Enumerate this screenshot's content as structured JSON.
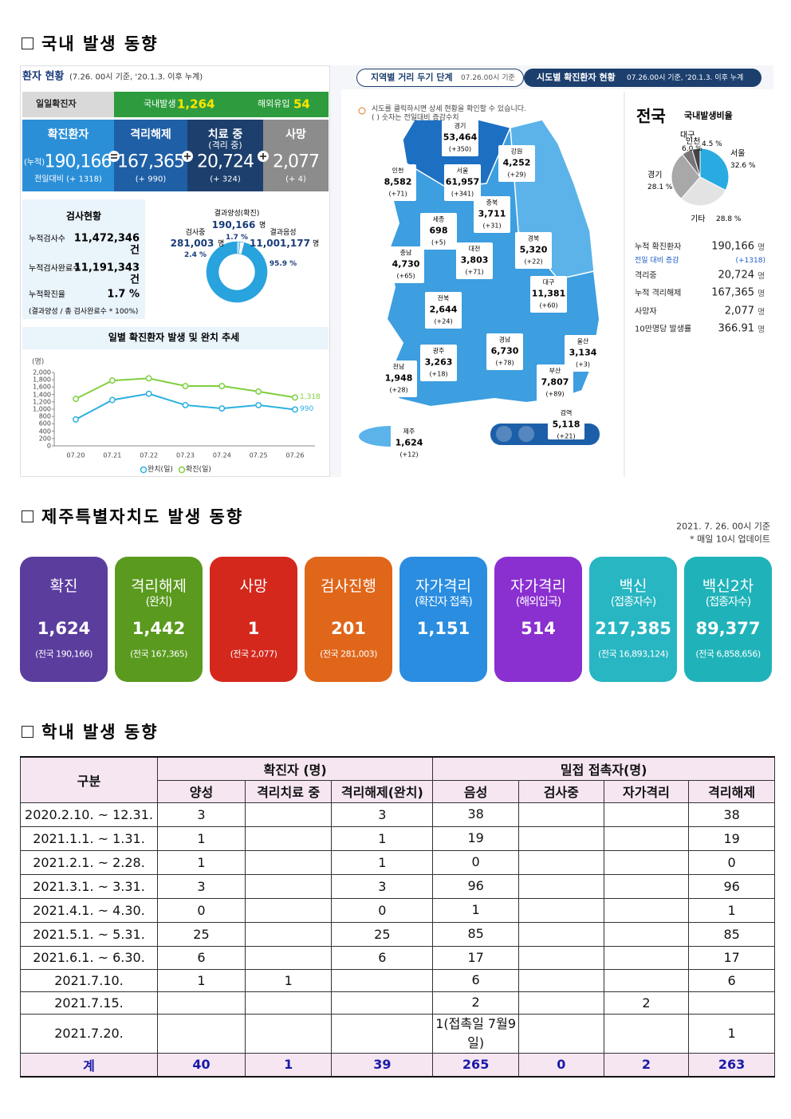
{
  "headings": [
    "국내 발생 동향",
    "제주특별자치도 발생 동향",
    "학내 발생 동향"
  ],
  "status": {
    "title": "환자 현황",
    "basis": "(7.26. 00시 기준, '20.1.3. 이후 누계)",
    "daily": {
      "label": "일일확진자",
      "domestic_label": "국내발생",
      "domestic": "1,264",
      "overseas_label": "해외유입",
      "overseas": "54"
    },
    "boxes": [
      {
        "label": "확진환자",
        "prefix": "(누적)",
        "value": "190,166",
        "change": "전일대비 (+ 1318)",
        "color": "#2b8fd8"
      },
      {
        "label": "격리해제",
        "value": "167,365",
        "change": "(+ 990)",
        "color": "#1f5fa6"
      },
      {
        "label": "치료 중",
        "sub": "(격리 중)",
        "value": "20,724",
        "change": "(+ 324)",
        "color": "#1c3f6e"
      },
      {
        "label": "사망",
        "value": "2,077",
        "change": "(+ 4)",
        "color": "#8c8c8c"
      }
    ]
  },
  "tests": {
    "title": "검사현황",
    "rows": [
      {
        "label": "누적검사수",
        "value": "11,472,346",
        "unit": "건"
      },
      {
        "label": "누적검사완료수",
        "value": "11,191,343",
        "unit": "건"
      },
      {
        "label": "누적확진율",
        "value": "1.7 %"
      }
    ],
    "note": "(결과양성 / 총 검사완료수 * 100%)"
  },
  "donut": {
    "type": "pie",
    "segments": [
      {
        "name": "결과양성(확진)",
        "count": "190,166",
        "unit": "명",
        "value": 1.7,
        "value_label": "1.7 %",
        "color": "#bfe3f5"
      },
      {
        "name": "검사중",
        "count": "281,003",
        "unit": "명",
        "value": 2.4,
        "value_label": "2.4 %",
        "color": "#ffffff"
      },
      {
        "name": "결과음성",
        "count": "11,001,177",
        "unit": "명",
        "value": 95.9,
        "value_label": "95.9 %",
        "color": "#29a3dd"
      }
    ]
  },
  "trend": {
    "type": "line",
    "title": "일별 확진환자 발생 및 완치 추세",
    "y_unit": "(명)",
    "x": [
      "07.20",
      "07.21",
      "07.22",
      "07.23",
      "07.24",
      "07.25",
      "07.26"
    ],
    "ylim": [
      0,
      2000
    ],
    "yticks": [
      0,
      200,
      400,
      600,
      800,
      {
        "value": 1000,
        "label": "1,000"
      },
      {
        "value": 1200,
        "label": "1,200"
      },
      {
        "value": 1400,
        "label": "1,400"
      },
      {
        "value": 1600,
        "label": "1,600"
      },
      {
        "value": 1800,
        "label": "1,800"
      },
      {
        "value": 2000,
        "label": "2,000"
      }
    ],
    "series": [
      {
        "name": "완치(일)",
        "color": "#2bb0e0",
        "values": [
          720,
          1250,
          1420,
          1110,
          1020,
          1110,
          990
        ],
        "value_labels": [
          null,
          null,
          null,
          null,
          null,
          null,
          "990"
        ]
      },
      {
        "name": "확진(일)",
        "color": "#7fcf3f",
        "values": [
          1280,
          1780,
          1840,
          1630,
          1630,
          1480,
          1318
        ],
        "value_labels": [
          null,
          null,
          null,
          null,
          null,
          null,
          "1,318"
        ]
      }
    ]
  },
  "map": {
    "tabs": [
      {
        "title": "지역별 거리 두기 단계",
        "basis": "07.26.00시 기준"
      },
      {
        "title": "시도별 확진환자 현황",
        "basis": "07.26.00시 기준, '20.1.3. 이후 누계"
      }
    ],
    "note": [
      "시도를 클릭하시면 상세 현황을 확인할 수 있습니다.",
      "( ) 숫자는 전일대비 증감수치"
    ],
    "regions": [
      {
        "name": "경기",
        "count": "53,464",
        "change": "(+350)"
      },
      {
        "name": "강원",
        "count": "4,252",
        "change": "(+29)"
      },
      {
        "name": "인천",
        "count": "8,582",
        "change": "(+71)"
      },
      {
        "name": "서울",
        "count": "61,957",
        "change": "(+341)"
      },
      {
        "name": "충북",
        "count": "3,711",
        "change": "(+31)"
      },
      {
        "name": "세종",
        "count": "698",
        "change": "(+5)"
      },
      {
        "name": "충남",
        "count": "4,730",
        "change": "(+65)"
      },
      {
        "name": "대전",
        "count": "3,803",
        "change": "(+71)"
      },
      {
        "name": "경북",
        "count": "5,320",
        "change": "(+22)"
      },
      {
        "name": "대구",
        "count": "11,381",
        "change": "(+60)"
      },
      {
        "name": "전북",
        "count": "2,644",
        "change": "(+24)"
      },
      {
        "name": "경남",
        "count": "6,730",
        "change": "(+78)"
      },
      {
        "name": "울산",
        "count": "3,134",
        "change": "(+3)"
      },
      {
        "name": "광주",
        "count": "3,263",
        "change": "(+18)"
      },
      {
        "name": "전남",
        "count": "1,948",
        "change": "(+28)"
      },
      {
        "name": "부산",
        "count": "7,807",
        "change": "(+89)"
      },
      {
        "name": "검역",
        "count": "5,118",
        "change": "(+21)"
      },
      {
        "name": "제주",
        "count": "1,624",
        "change": "(+12)"
      }
    ]
  },
  "national": {
    "title": "전국",
    "ratio_title": "국내발생비율",
    "pie": {
      "type": "pie",
      "categories": [
        "서울",
        "기타",
        "경기",
        "인천",
        "대구"
      ],
      "values": [
        32.6,
        28.8,
        28.1,
        6.0,
        4.5
      ],
      "value_labels": [
        "32.6 %",
        "28.8 %",
        "28.1 %",
        "6.0 %",
        "4.5 %"
      ],
      "colors": [
        "#29abe2",
        "#e3e3e3",
        "#a8a8a8",
        "#777777",
        "#444444"
      ]
    },
    "stats": [
      {
        "label": "누적 확진환자",
        "value": "190,166",
        "unit": "명"
      },
      {
        "label": "전일 대비 증감",
        "value": "(+1318)"
      },
      {
        "label": "격리중",
        "value": "20,724",
        "unit": "명"
      },
      {
        "label": "누적 격리해제",
        "value": "167,365",
        "unit": "명"
      },
      {
        "label": "사망자",
        "value": "2,077",
        "unit": "명"
      },
      {
        "label": "10만명당 발생률",
        "value": "366.91",
        "unit": "명"
      }
    ]
  },
  "jeju": {
    "basis": "2021. 7. 26. 00시 기준",
    "update": "* 매일 10시 업데이트",
    "cards": [
      {
        "label": "확진",
        "value": "1,624",
        "national": "(전국 190,166)",
        "color": "#5b3d9e"
      },
      {
        "label": "격리해제",
        "sub": "(완치)",
        "value": "1,442",
        "national": "(전국 167,365)",
        "color": "#5a9a1e"
      },
      {
        "label": "사망",
        "value": "1",
        "national": "(전국 2,077)",
        "color": "#d4281d"
      },
      {
        "label": "검사진행",
        "value": "201",
        "national": "(전국 281,003)",
        "color": "#e0661a"
      },
      {
        "label": "자가격리",
        "sub": "(확진자 접촉)",
        "value": "1,151",
        "color": "#2a8de0"
      },
      {
        "label": "자가격리",
        "sub": "(해외입국)",
        "value": "514",
        "color": "#8a2fd0"
      },
      {
        "label": "백신",
        "sub": "(접종자수)",
        "value": "217,385",
        "national": "(전국 16,893,124)",
        "color": "#27b6c2"
      },
      {
        "label": "백신2차",
        "sub": "(접종자수)",
        "value": "89,377",
        "national": "(전국 6,858,656)",
        "color": "#1fb3b9"
      }
    ]
  },
  "school": {
    "group": "구분",
    "confirmed": "확진자 (명)",
    "contacts": "밀접 접촉자(명)",
    "columns": [
      "양성",
      "격리치료 중",
      "격리해제(완치)",
      "음성",
      "검사중",
      "자가격리",
      "격리해제"
    ],
    "rows": [
      [
        "2020.2.10.  ~ 12.31.",
        "3",
        null,
        "3",
        "38",
        null,
        null,
        "38"
      ],
      [
        "2021.1.1.  ~  1.31.",
        "1",
        null,
        "1",
        "19",
        null,
        null,
        "19"
      ],
      [
        "2021.2.1.  ~  2.28.",
        "1",
        null,
        "1",
        "0",
        null,
        null,
        "0"
      ],
      [
        "2021.3.1.  ~  3.31.",
        "3",
        null,
        "3",
        "96",
        null,
        null,
        "96"
      ],
      [
        "2021.4.1.  ~  4.30.",
        "0",
        null,
        "0",
        "1",
        null,
        null,
        "1"
      ],
      [
        "2021.5.1.  ~  5.31.",
        "25",
        null,
        "25",
        "85",
        null,
        null,
        "85"
      ],
      [
        "2021.6.1.  ~  6.30.",
        "6",
        null,
        "6",
        "17",
        null,
        null,
        "17"
      ],
      [
        "2021.7.10.",
        "1",
        "1",
        null,
        "6",
        null,
        null,
        "6"
      ],
      [
        "2021.7.15.",
        null,
        null,
        null,
        "2",
        null,
        "2",
        null
      ],
      [
        "2021.7.20.",
        null,
        null,
        null,
        "1(접촉일 7월9일)",
        null,
        null,
        "1"
      ]
    ],
    "total": [
      "계",
      "40",
      "1",
      "39",
      "265",
      "0",
      "2",
      "263"
    ]
  }
}
